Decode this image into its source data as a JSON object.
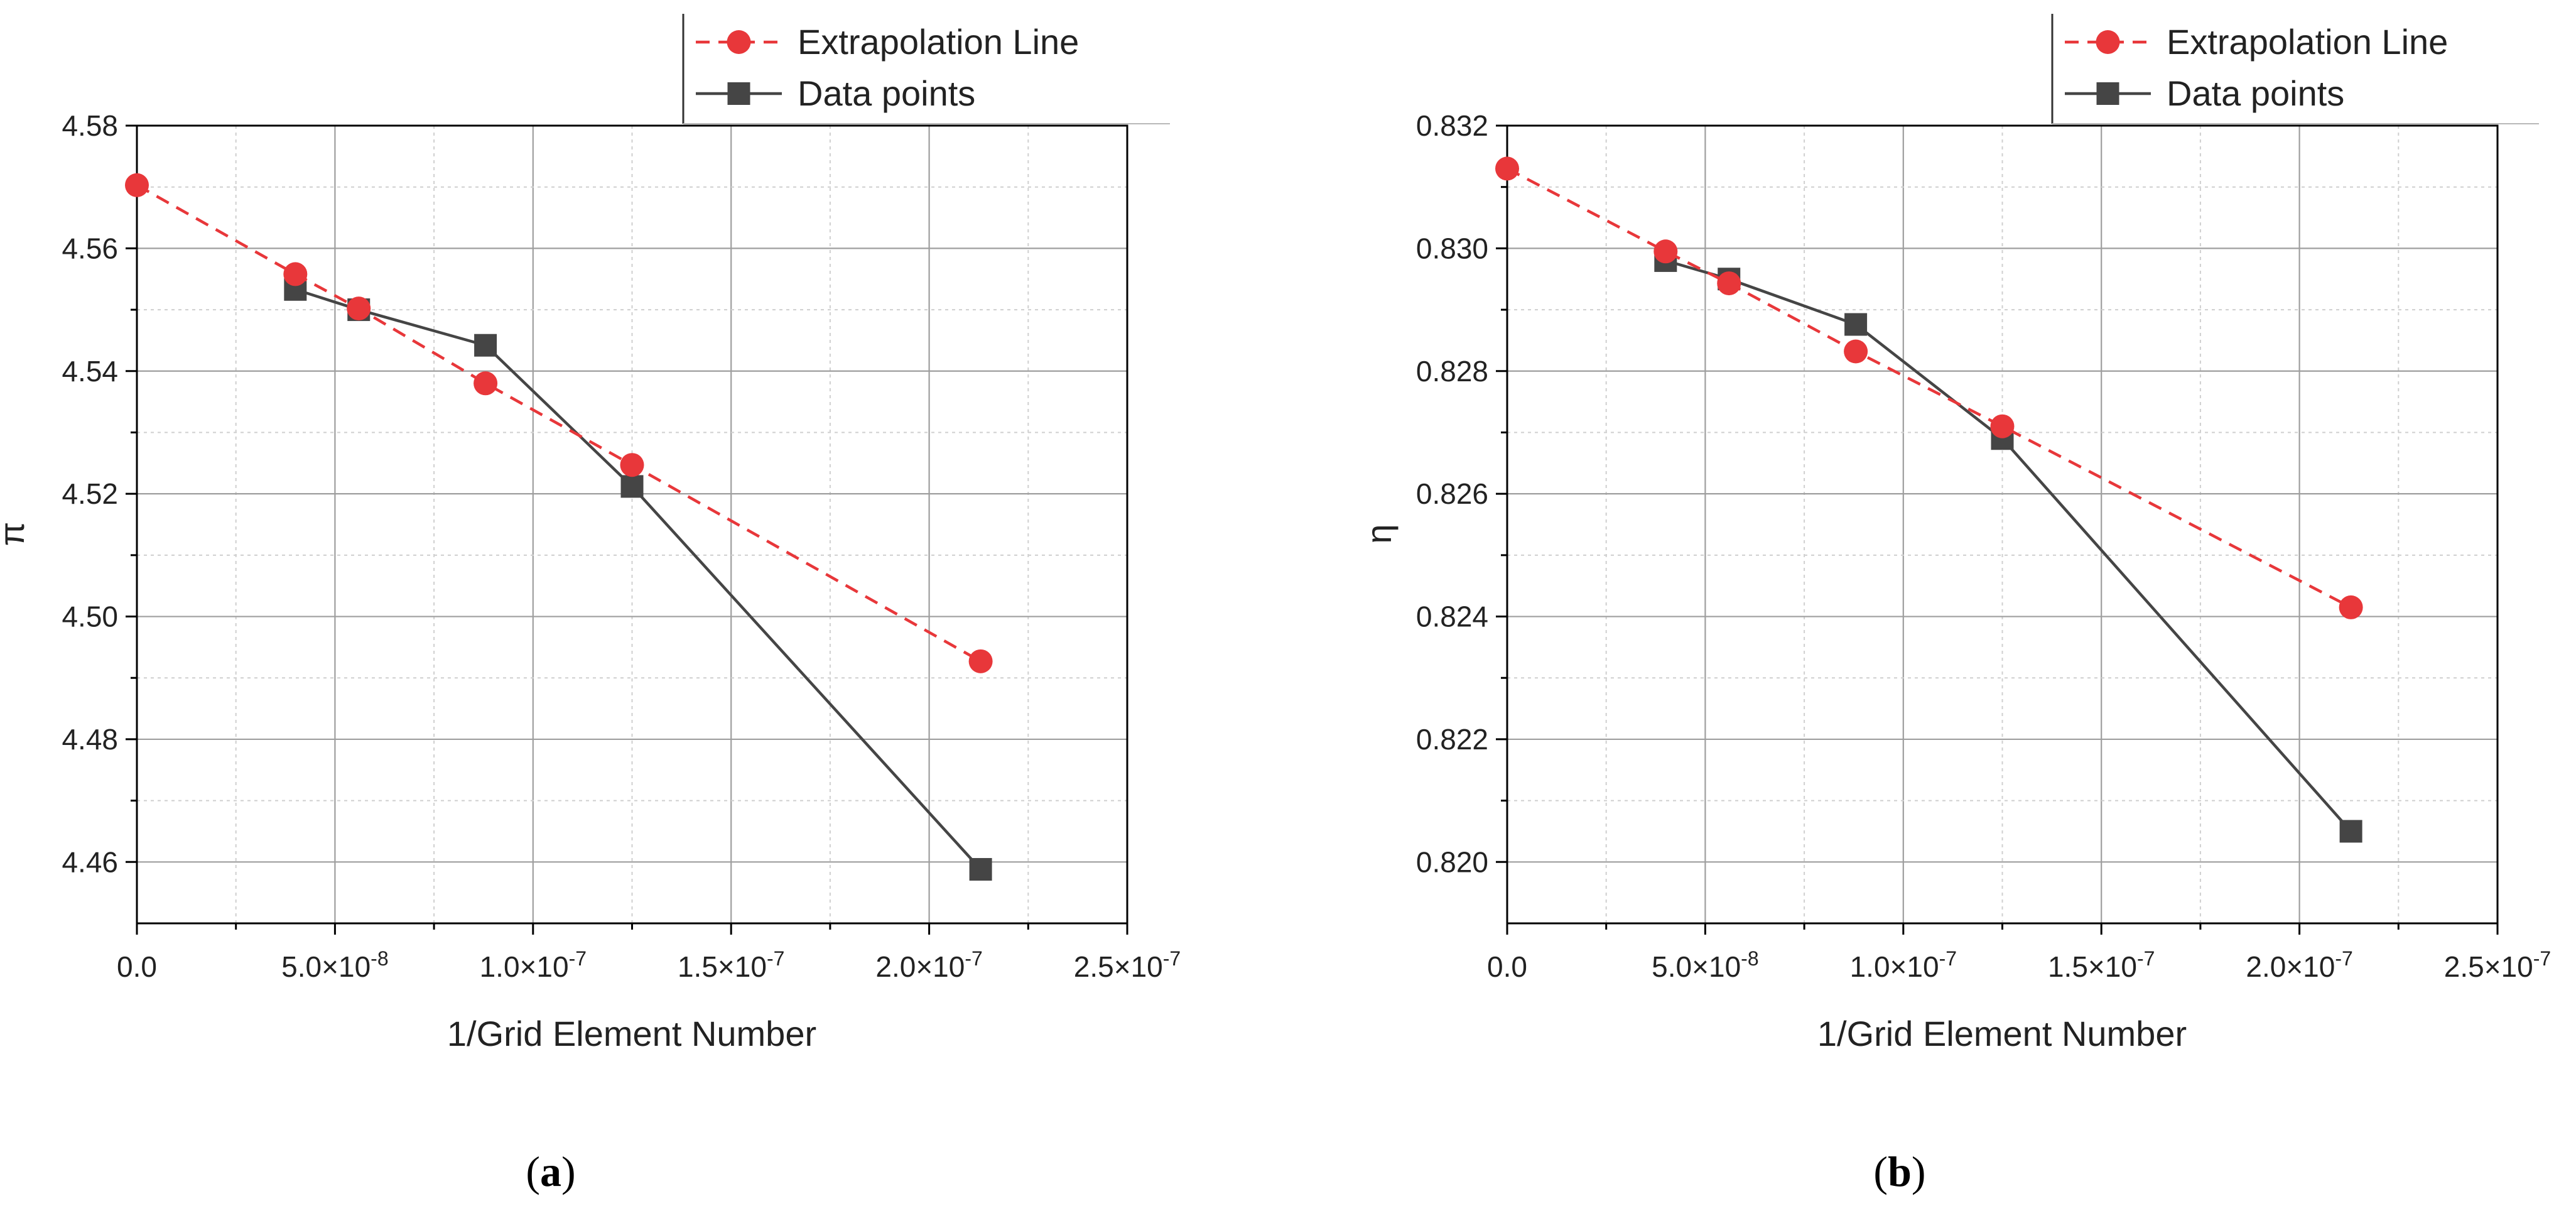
{
  "chart_data": [
    {
      "type": "line",
      "panel_caption": "a",
      "xlabel": "1/Grid Element Number",
      "ylabel": "π",
      "xlim": [
        0,
        2.5e-07
      ],
      "ylim": [
        4.45,
        4.58
      ],
      "x_major_ticks": [
        0,
        5e-08,
        1e-07,
        1.5e-07,
        2e-07,
        2.5e-07
      ],
      "x_tick_labels": [
        {
          "base": "0.0",
          "exp": ""
        },
        {
          "base": "5.0×10",
          "exp": "-8"
        },
        {
          "base": "1.0×10",
          "exp": "-7"
        },
        {
          "base": "1.5×10",
          "exp": "-7"
        },
        {
          "base": "2.0×10",
          "exp": "-7"
        },
        {
          "base": "2.5×10",
          "exp": "-7"
        }
      ],
      "y_major_ticks": [
        4.46,
        4.48,
        4.5,
        4.52,
        4.54,
        4.56,
        4.58
      ],
      "y_tick_labels": [
        "4.46",
        "4.48",
        "4.50",
        "4.52",
        "4.54",
        "4.56",
        "4.58"
      ],
      "grid": true,
      "legend_position": "top-right, above plot",
      "series": [
        {
          "name": "Extrapolation Line",
          "style": "dashed",
          "marker": "circle",
          "color": "#e8373a",
          "x": [
            0,
            4e-08,
            5.6e-08,
            8.8e-08,
            1.25e-07,
            2.13e-07
          ],
          "y": [
            4.5703,
            4.5558,
            4.5502,
            4.538,
            4.5247,
            4.4927
          ]
        },
        {
          "name": "Data points",
          "style": "solid",
          "marker": "square",
          "color": "#454545",
          "x": [
            4e-08,
            5.6e-08,
            8.8e-08,
            1.25e-07,
            2.13e-07
          ],
          "y": [
            4.5533,
            4.55,
            4.5442,
            4.5212,
            4.4588
          ]
        }
      ]
    },
    {
      "type": "line",
      "panel_caption": "b",
      "xlabel": "1/Grid Element Number",
      "ylabel": "η",
      "xlim": [
        0,
        2.5e-07
      ],
      "ylim": [
        0.819,
        0.832
      ],
      "x_major_ticks": [
        0,
        5e-08,
        1e-07,
        1.5e-07,
        2e-07,
        2.5e-07
      ],
      "x_tick_labels": [
        {
          "base": "0.0",
          "exp": ""
        },
        {
          "base": "5.0×10",
          "exp": "-8"
        },
        {
          "base": "1.0×10",
          "exp": "-7"
        },
        {
          "base": "1.5×10",
          "exp": "-7"
        },
        {
          "base": "2.0×10",
          "exp": "-7"
        },
        {
          "base": "2.5×10",
          "exp": "-7"
        }
      ],
      "y_major_ticks": [
        0.82,
        0.822,
        0.824,
        0.826,
        0.828,
        0.83,
        0.832
      ],
      "y_tick_labels": [
        "0.820",
        "0.822",
        "0.824",
        "0.826",
        "0.828",
        "0.830",
        "0.832"
      ],
      "grid": true,
      "legend_position": "top-right, above plot",
      "series": [
        {
          "name": "Extrapolation Line",
          "style": "dashed",
          "marker": "circle",
          "color": "#e8373a",
          "x": [
            0,
            4e-08,
            5.6e-08,
            8.8e-08,
            1.25e-07,
            2.13e-07
          ],
          "y": [
            0.8313,
            0.82995,
            0.82943,
            0.82832,
            0.8271,
            0.82415
          ]
        },
        {
          "name": "Data points",
          "style": "solid",
          "marker": "square",
          "color": "#454545",
          "x": [
            4e-08,
            5.6e-08,
            8.8e-08,
            1.25e-07,
            2.13e-07
          ],
          "y": [
            0.8298,
            0.8295,
            0.82876,
            0.8269,
            0.8205
          ]
        }
      ]
    }
  ]
}
